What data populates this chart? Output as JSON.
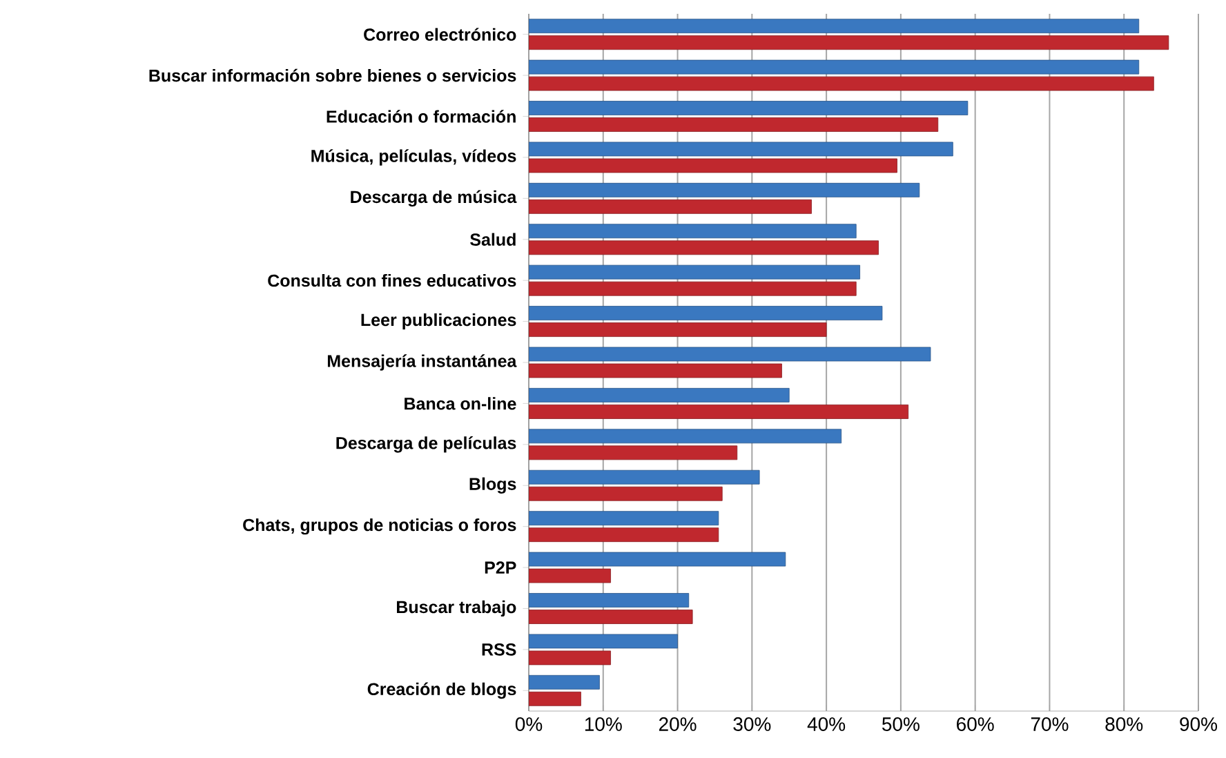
{
  "chart_data": {
    "type": "bar",
    "orientation": "horizontal",
    "grid": "x",
    "categories": [
      "Correo electrónico",
      "Buscar información sobre bienes o servicios",
      "Educación o formación",
      "Música, películas, vídeos",
      "Descarga de música",
      "Salud",
      "Consulta con fines educativos",
      "Leer publicaciones",
      "Mensajería instantánea",
      "Banca on-line",
      "Descarga de películas",
      "Blogs",
      "Chats, grupos de noticias o foros",
      "P2P",
      "Buscar trabajo",
      "RSS",
      "Creación de blogs"
    ],
    "series": [
      {
        "color": "#c0282e",
        "values": [
          86,
          84,
          55,
          49.5,
          38,
          47,
          44,
          40,
          34,
          51,
          28,
          26,
          25.5,
          11,
          22,
          11,
          7
        ]
      },
      {
        "color": "#3a78c0",
        "values": [
          82,
          82,
          59,
          57,
          52.5,
          44,
          44.5,
          47.5,
          54,
          35,
          42,
          31,
          25.5,
          34.5,
          21.5,
          20,
          9.5
        ]
      }
    ],
    "xlim": [
      0,
      90
    ],
    "xticks": [
      {
        "value": 0,
        "label": "0%"
      },
      {
        "value": 10,
        "label": "10%"
      },
      {
        "value": 20,
        "label": "20%"
      },
      {
        "value": 30,
        "label": "30%"
      },
      {
        "value": 40,
        "label": "40%"
      },
      {
        "value": 50,
        "label": "50%"
      },
      {
        "value": 60,
        "label": "60%"
      },
      {
        "value": 70,
        "label": "70%"
      },
      {
        "value": 80,
        "label": "80%"
      },
      {
        "value": 90,
        "label": "90%"
      }
    ]
  }
}
